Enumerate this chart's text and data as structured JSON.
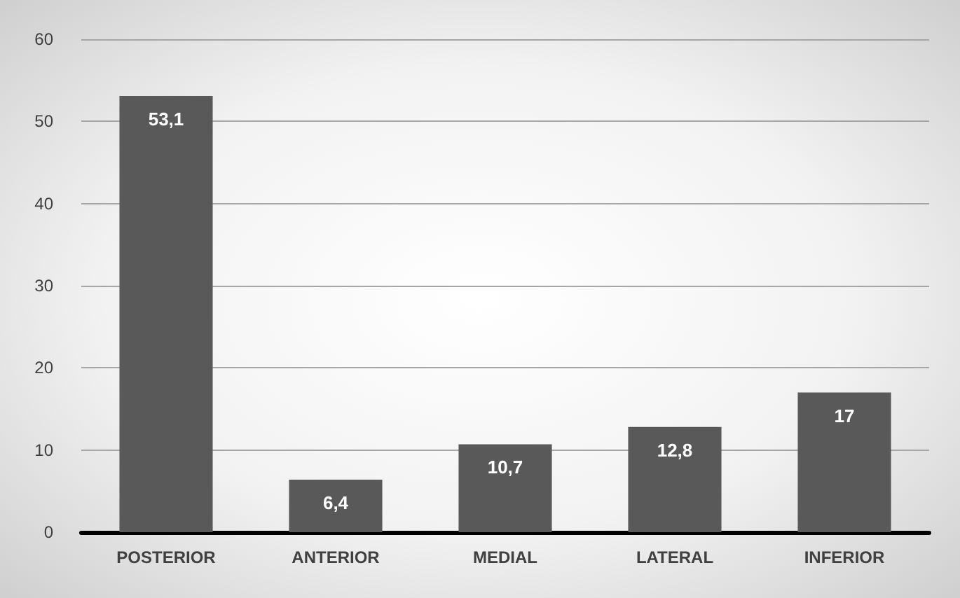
{
  "chart_data": {
    "type": "bar",
    "categories": [
      "POSTERIOR",
      "ANTERIOR",
      "MEDIAL",
      "LATERAL",
      "INFERIOR"
    ],
    "values": [
      53.1,
      6.4,
      10.7,
      12.8,
      17
    ],
    "value_labels": [
      "53,1",
      "6,4",
      "10,7",
      "12,8",
      "17"
    ],
    "color": "#595959",
    "ylim": [
      0,
      60
    ],
    "yticks": [
      0,
      10,
      20,
      30,
      40,
      50,
      60
    ],
    "grid": "y"
  }
}
